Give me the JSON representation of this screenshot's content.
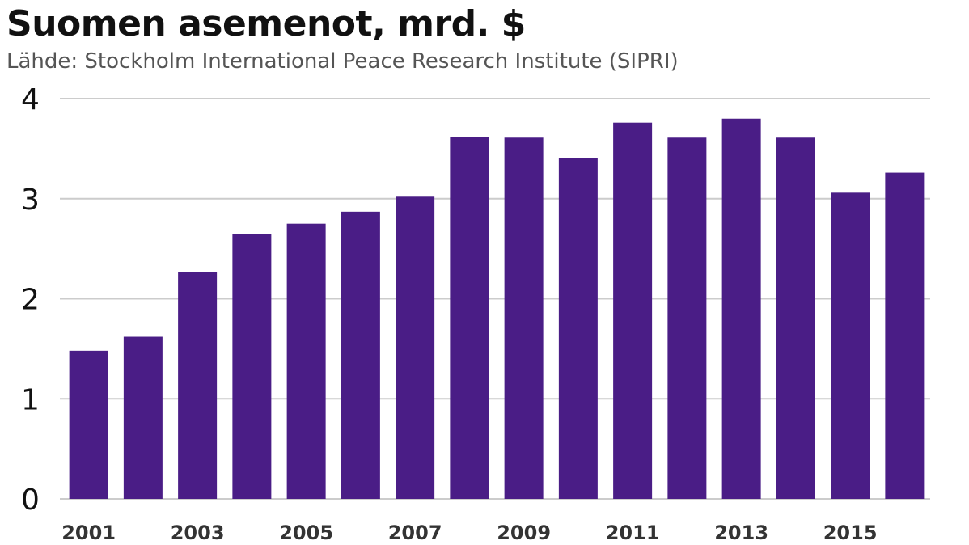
{
  "title": "Suomen asemenot, mrd. $",
  "subtitle": "Lähde: Stockholm International Peace Research Institute (SIPRI)",
  "colors": {
    "bar": "#4a1d86",
    "grid": "#cccccc",
    "text": "#111111",
    "subtitle": "#555555"
  },
  "chart_data": {
    "type": "bar",
    "categories": [
      "2001",
      "2002",
      "2003",
      "2004",
      "2005",
      "2006",
      "2007",
      "2008",
      "2009",
      "2010",
      "2011",
      "2012",
      "2013",
      "2014",
      "2015",
      "2016"
    ],
    "values": [
      1.48,
      1.62,
      2.27,
      2.65,
      2.75,
      2.87,
      3.02,
      3.62,
      3.61,
      3.41,
      3.76,
      3.61,
      3.8,
      3.61,
      3.06,
      3.26
    ],
    "x_tick_labels": [
      "2001",
      "2003",
      "2005",
      "2007",
      "2009",
      "2011",
      "2013",
      "2015"
    ],
    "y_ticks": [
      "0",
      "1",
      "2",
      "3",
      "4"
    ],
    "ylim": [
      0,
      4
    ],
    "xlabel": "",
    "ylabel": "",
    "grid": true,
    "legend": "none"
  }
}
